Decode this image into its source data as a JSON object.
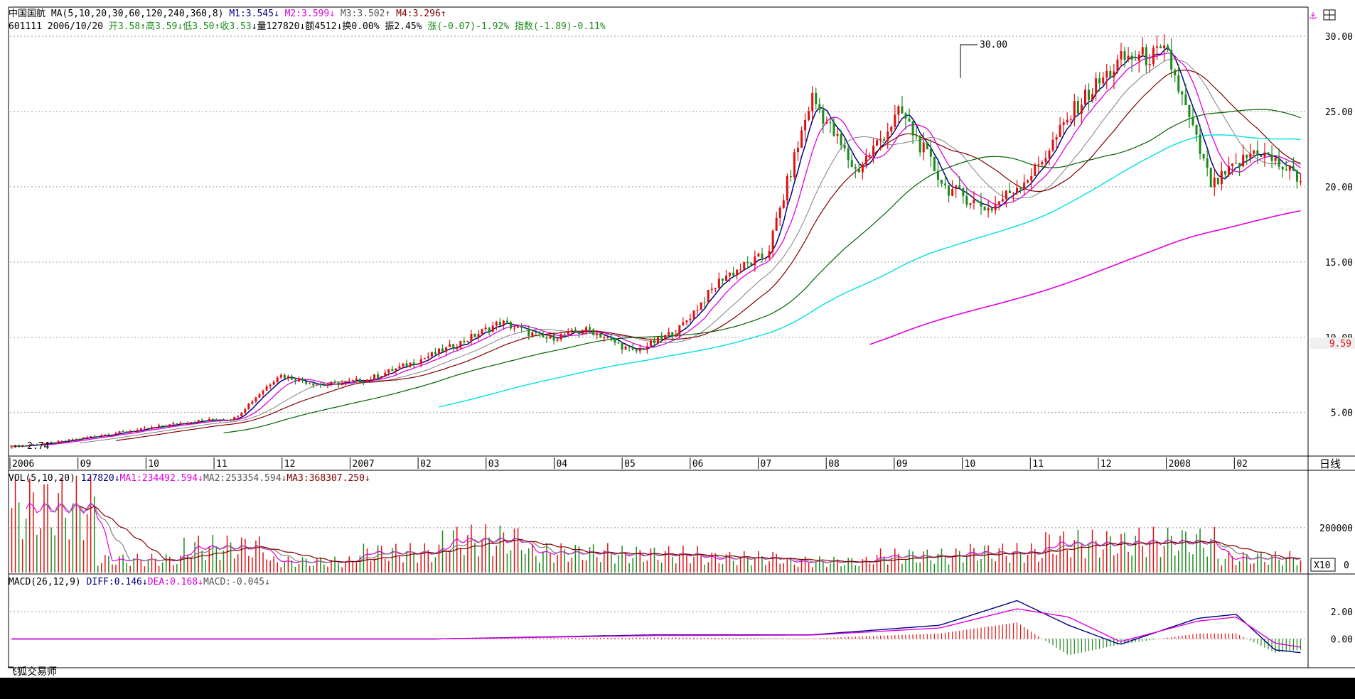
{
  "price_header": {
    "name": "中国国航",
    "ma_label": "MA(5,10,20,30,60,120,240,360,8)",
    "m1": "M1:3.545",
    "m2": "M2:3.599",
    "m3": "M3:3.502",
    "m4": "M4:3.296"
  },
  "quote_line": {
    "code": "601111",
    "date": "2006/10/20",
    "open": "开3.58",
    "high": "高3.59",
    "low": "低3.50",
    "close": "收3.53",
    "volume": "量127820",
    "amount": "额4512",
    "turnover": "换0.00%",
    "amplitude": "振2.45%",
    "change": "涨(-0.07)-1.92%",
    "index": "指数(-1.89)-0.11%"
  },
  "vol_header": {
    "label": "VOL(5,10,20)",
    "v": "127820",
    "ma1": "MA1:234492.594",
    "ma2": "MA2:253354.594",
    "ma3": "MA3:368307.250"
  },
  "macd_header": {
    "label": "MACD(26,12,9)",
    "diff": "DIFF:0.146",
    "dea": "DEA:0.168",
    "macd": "MACD:-0.045"
  },
  "side": {
    "period": "日线",
    "vol_unit": "X10",
    "current_price": "9.59",
    "vol_zero": "0"
  },
  "annotations": {
    "peak": "30.00",
    "low": "2.74"
  },
  "brand": "飞狐交易师",
  "colors": {
    "up": "#e01010",
    "down": "#1a8a1a",
    "ma5": "#000080",
    "ma10": "#e000e0",
    "ma20": "#808080",
    "ma30": "#800000",
    "ma60": "#006000",
    "ma120": "#00e0e0",
    "ma240": "#e000e0",
    "grid": "#999999"
  },
  "chart_data": [
    {
      "type": "candlestick",
      "title": "",
      "x_tick_labels": [
        "2006",
        "09",
        "10",
        "11",
        "12",
        "2007",
        "02",
        "03",
        "04",
        "05",
        "06",
        "07",
        "08",
        "09",
        "10",
        "11",
        "12",
        "2008",
        "02"
      ],
      "y_ticks": [
        5,
        10,
        15,
        20,
        25,
        30
      ],
      "ylim": [
        2.2,
        31
      ],
      "close_path": [
        [
          "2006-08",
          2.74
        ],
        [
          "2006-09",
          3.0
        ],
        [
          "2006-10",
          3.5
        ],
        [
          "2006-11",
          3.9
        ],
        [
          "2006-12",
          4.4
        ],
        [
          "2007-01",
          4.6
        ],
        [
          "2007-01b",
          7.5
        ],
        [
          "2007-02",
          6.8
        ],
        [
          "2007-03",
          7.2
        ],
        [
          "2007-04",
          8.3
        ],
        [
          "2007-05",
          9.5
        ],
        [
          "2007-06",
          11.0
        ],
        [
          "2007-06b",
          9.9
        ],
        [
          "2007-07",
          10.5
        ],
        [
          "2007-07b",
          9.0
        ],
        [
          "2007-08",
          10.5
        ],
        [
          "2007-08b",
          14.0
        ],
        [
          "2007-09",
          15.5
        ],
        [
          "2007-09b",
          26.0
        ],
        [
          "2007-10",
          21.0
        ],
        [
          "2007-10b",
          25.0
        ],
        [
          "2007-11",
          20.0
        ],
        [
          "2007-11b",
          18.5
        ],
        [
          "2007-12",
          21.0
        ],
        [
          "2007-12b",
          25.5
        ],
        [
          "2008-01",
          28.5
        ],
        [
          "2008-01b",
          28.8
        ],
        [
          "2008-02",
          20.0
        ],
        [
          "2008-02b",
          22.5
        ],
        [
          "2008-03",
          20.5
        ]
      ],
      "peak": 30.0,
      "low": 2.74,
      "last_marker": 9.59
    },
    {
      "type": "bar",
      "title": "",
      "y_ticks": [
        0,
        200000
      ],
      "note": "volume, units X10",
      "values_sample": [
        360000,
        70000,
        140000,
        60000,
        110000,
        180000,
        110000,
        100000,
        80000,
        60000,
        90000,
        110000,
        160000,
        170000,
        80000
      ]
    },
    {
      "type": "bar",
      "title": "",
      "y_ticks": [
        0,
        2.0
      ],
      "series": [
        {
          "name": "DIFF",
          "points": [
            [
              0,
              0.0
            ],
            [
              0.33,
              0.0
            ],
            [
              0.5,
              0.3
            ],
            [
              0.62,
              0.3
            ],
            [
              0.72,
              1.0
            ],
            [
              0.78,
              2.8
            ],
            [
              0.82,
              1.0
            ],
            [
              0.86,
              -0.4
            ],
            [
              0.92,
              1.5
            ],
            [
              0.95,
              1.8
            ],
            [
              0.98,
              -0.8
            ],
            [
              1.0,
              -1.0
            ]
          ]
        },
        {
          "name": "DEA",
          "points": [
            [
              0,
              0.0
            ],
            [
              0.33,
              0.0
            ],
            [
              0.5,
              0.25
            ],
            [
              0.62,
              0.28
            ],
            [
              0.72,
              0.8
            ],
            [
              0.78,
              2.2
            ],
            [
              0.82,
              1.6
            ],
            [
              0.86,
              -0.2
            ],
            [
              0.92,
              1.3
            ],
            [
              0.95,
              1.6
            ],
            [
              0.98,
              -0.3
            ],
            [
              1.0,
              -0.6
            ]
          ]
        }
      ]
    }
  ]
}
